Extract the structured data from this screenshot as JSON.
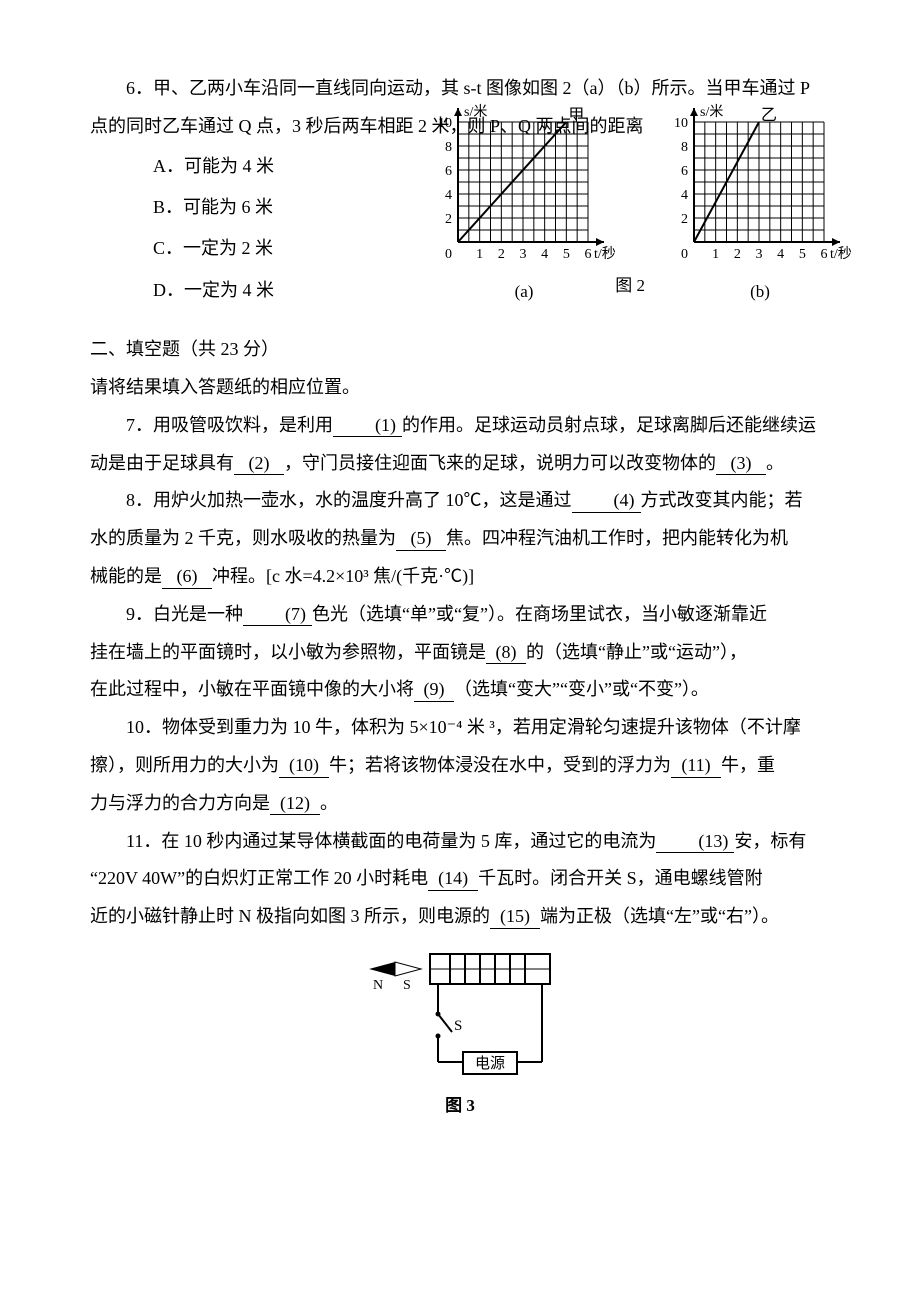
{
  "q6": {
    "stem_a": "6．甲、乙两小车沿同一直线同向运动，其 s-t 图像如图 2（a）（b）所示。当甲车通过 P",
    "stem_b": "点的同时乙车通过 Q 点，3 秒后两车相距 2 米，则 P、Q 两点间的距离",
    "options": {
      "A": "A．可能为 4 米",
      "B": "B．可能为 6 米",
      "C": "C．一定为 2 米",
      "D": "D．一定为 4 米"
    }
  },
  "chart_a": {
    "type": "line",
    "xlim": [
      0,
      6
    ],
    "ylim": [
      0,
      10
    ],
    "xticks": [
      1,
      2,
      3,
      4,
      5,
      6
    ],
    "yticks": [
      2,
      4,
      6,
      8,
      10
    ],
    "xlabel": "t/秒",
    "ylabel": "s/米",
    "line_label": "甲",
    "points": [
      [
        0,
        0
      ],
      [
        6,
        12
      ]
    ],
    "grid_color": "#000000",
    "line_color": "#000000",
    "line_width": 2,
    "background_color": "#ffffff",
    "font_size": 14
  },
  "chart_b": {
    "type": "line",
    "xlim": [
      0,
      6
    ],
    "ylim": [
      0,
      10
    ],
    "xticks": [
      1,
      2,
      3,
      4,
      5,
      6
    ],
    "yticks": [
      2,
      4,
      6,
      8,
      10
    ],
    "xlabel": "t/秒",
    "ylabel": "s/米",
    "line_label": "乙",
    "points": [
      [
        0,
        0
      ],
      [
        3,
        10
      ]
    ],
    "grid_color": "#000000",
    "line_color": "#000000",
    "line_width": 2,
    "background_color": "#ffffff",
    "font_size": 14
  },
  "fig2_caption": "图 2",
  "fig2_sub_a": "(a)",
  "fig2_sub_b": "(b)",
  "section2": {
    "title": "二、填空题（共 23 分）",
    "subtitle": "请将结果填入答题纸的相应位置。"
  },
  "q7": {
    "pre": "7．用吸管吸饮料，是利用",
    "b1": "(1)",
    "mid1": "的作用。足球运动员射点球，足球离脚后还能继续运",
    "line2a": "动是由于足球具有",
    "b2": "(2)",
    "mid2": "，守门员接住迎面飞来的足球，说明力可以改变物体的",
    "b3": "(3)",
    "tail": "。"
  },
  "q8": {
    "pre": "8．用炉火加热一壶水，水的温度升高了 10℃，这是通过",
    "b4": "(4)",
    "mid1": "方式改变其内能；若",
    "line2a": "水的质量为 2 千克，则水吸收的热量为",
    "b5": "(5)",
    "mid2": "焦。四冲程汽油机工作时，把内能转化为机",
    "line3a": "械能的是",
    "b6": "(6)",
    "tail": "冲程。[c 水=4.2×10³ 焦/(千克·℃)]"
  },
  "q9": {
    "pre": "9．白光是一种",
    "b7": "(7)",
    "mid1": "色光（选填“单”或“复”）。在商场里试衣，当小敏逐渐靠近",
    "line2a": "挂在墙上的平面镜时，以小敏为参照物，平面镜是",
    "b8": "(8)",
    "mid2": "的（选填“静止”或“运动”），",
    "line3a": "在此过程中，小敏在平面镜中像的大小将",
    "b9": "(9)",
    "tail": "（选填“变大”“变小”或“不变”）。"
  },
  "q10": {
    "pre": "10．物体受到重力为 10 牛，体积为 5×10⁻⁴ 米 ³，若用定滑轮匀速提升该物体（不计摩",
    "line2a": "擦），则所用力的大小为",
    "b10": "(10)",
    "mid1": "牛；若将该物体浸没在水中，受到的浮力为",
    "b11": "(11)",
    "mid2": "牛，重",
    "line3a": "力与浮力的合力方向是",
    "b12": "(12)",
    "tail": "。"
  },
  "q11": {
    "pre": "11．在 10 秒内通过某导体横截面的电荷量为 5 库，通过它的电流为",
    "b13": "(13)",
    "mid1": "安，标有",
    "line2a": "“220V 40W”的白炽灯正常工作 20 小时耗电",
    "b14": "(14)",
    "mid2": "千瓦时。闭合开关 S，通电螺线管附",
    "line3a": "近的小磁针静止时 N 极指向如图 3 所示，则电源的",
    "b15": "(15)",
    "tail": "端为正极（选填“左”或“右”）。"
  },
  "fig3": {
    "caption": "图 3",
    "compass_N": "N",
    "compass_S": "S",
    "switch_label": "S",
    "source_label": "电源",
    "line_color": "#000000",
    "line_width": 2
  }
}
